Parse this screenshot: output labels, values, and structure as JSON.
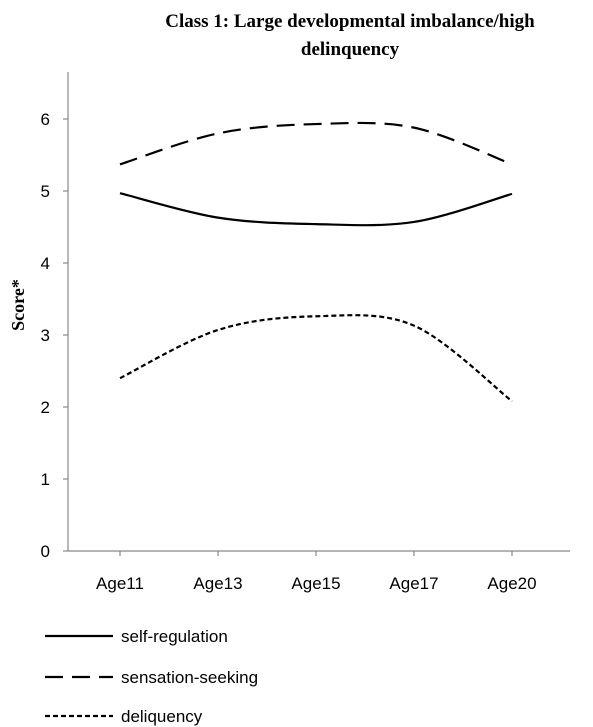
{
  "chart_data": {
    "type": "line",
    "title": {
      "line1": "Class 1: Large developmental imbalance/high",
      "line2": "delinquency"
    },
    "ylabel": "Score*",
    "xlabel": "",
    "categories": [
      "Age11",
      "Age13",
      "Age15",
      "Age17",
      "Age20"
    ],
    "ylim": [
      0,
      6
    ],
    "yticks": [
      "0",
      "1",
      "2",
      "3",
      "4",
      "5",
      "6"
    ],
    "grid": false,
    "legend_position": "bottom",
    "series": [
      {
        "name": "self-regulation",
        "values": [
          4.97,
          4.63,
          4.54,
          4.57,
          4.96
        ],
        "style": "solid",
        "color": "#000000"
      },
      {
        "name": "sensation-seeking",
        "values": [
          5.37,
          5.8,
          5.93,
          5.88,
          5.37
        ],
        "style": "long-dash",
        "color": "#000000"
      },
      {
        "name": "deliquency",
        "values": [
          2.4,
          3.07,
          3.26,
          3.13,
          2.08
        ],
        "style": "short-dash",
        "color": "#000000"
      }
    ]
  }
}
